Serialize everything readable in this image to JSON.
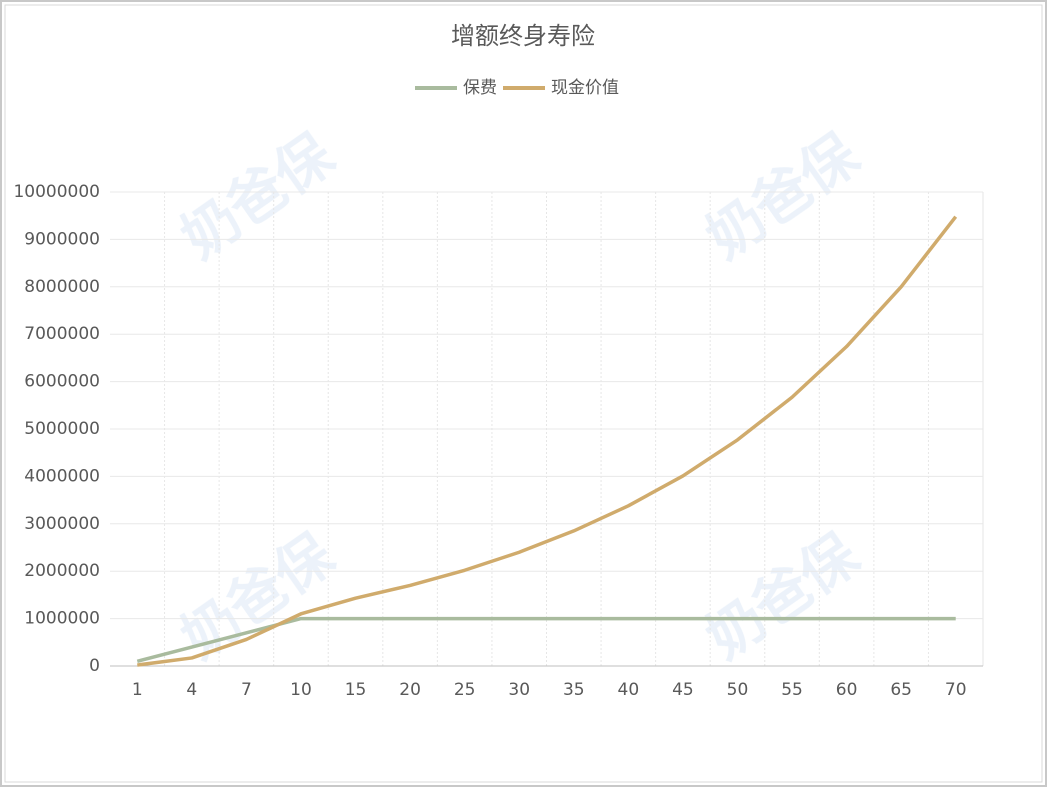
{
  "chart_data": {
    "type": "line",
    "title": "增额终身寿险",
    "categories": [
      1,
      4,
      7,
      10,
      15,
      20,
      25,
      30,
      35,
      40,
      45,
      50,
      55,
      60,
      65,
      70
    ],
    "series": [
      {
        "name": "保费",
        "color": "#a9bb9e",
        "values": [
          100000,
          400000,
          700000,
          1000000,
          1000000,
          1000000,
          1000000,
          1000000,
          1000000,
          1000000,
          1000000,
          1000000,
          1000000,
          1000000,
          1000000,
          1000000
        ]
      },
      {
        "name": "现金价值",
        "color": "#d0ab6c",
        "values": [
          20000,
          170000,
          560000,
          1100000,
          1430000,
          1700000,
          2020000,
          2400000,
          2850000,
          3380000,
          4010000,
          4770000,
          5670000,
          6740000,
          8000000,
          9480000
        ]
      }
    ],
    "ylim": [
      0,
      10000000
    ],
    "yticks": [
      0,
      1000000,
      2000000,
      3000000,
      4000000,
      5000000,
      6000000,
      7000000,
      8000000,
      9000000,
      10000000
    ],
    "grid": true,
    "legend": "top",
    "watermark": "奶爸保"
  }
}
